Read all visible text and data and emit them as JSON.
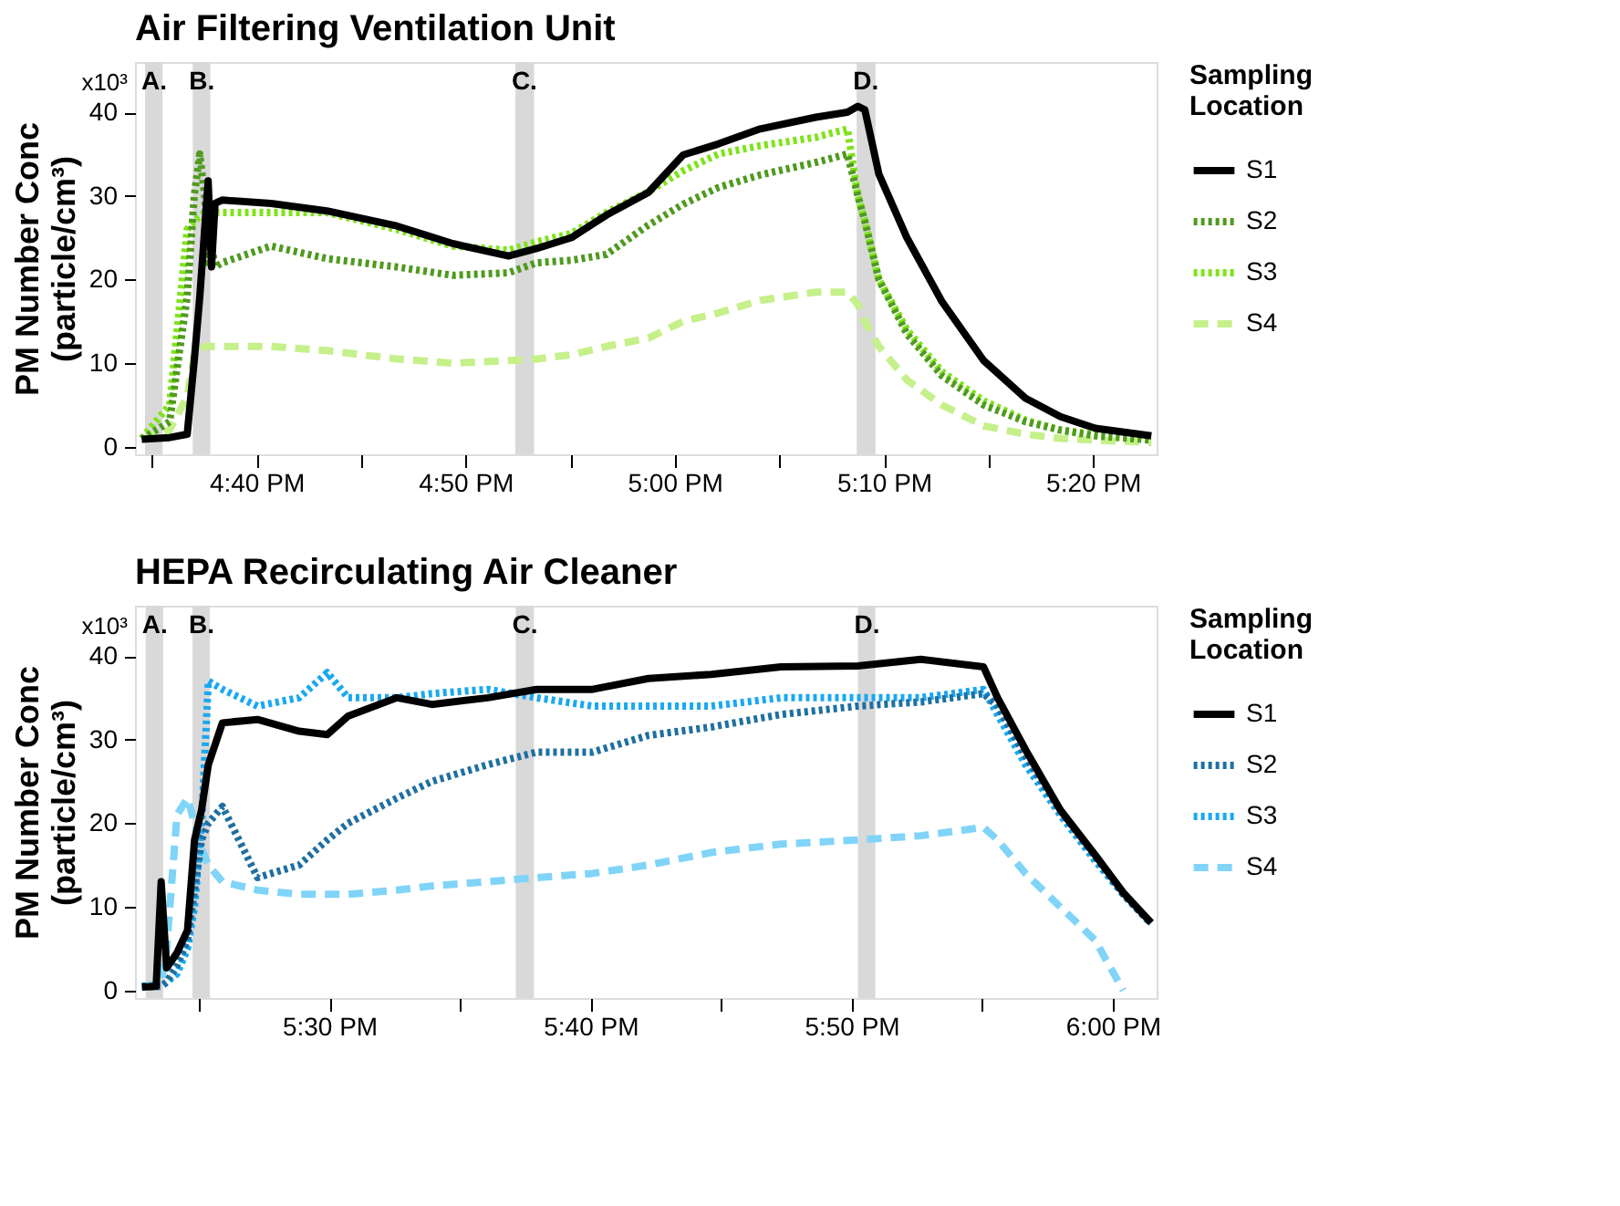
{
  "chart_data": [
    {
      "type": "line",
      "title": "Air Filtering Ventilation Unit",
      "ylabel": "PM Number Conc\n(particle/cm³)",
      "legend_title": "Sampling Location",
      "legend": "right",
      "grid": false,
      "x": [
        16.5754,
        16.5976,
        16.6116,
        16.6172,
        16.6216,
        16.6255,
        16.6283,
        16.631,
        16.6338,
        16.6394,
        16.6784,
        16.7229,
        16.7786,
        16.8231,
        16.8676,
        16.8899,
        16.9177,
        16.9456,
        16.979,
        17.0068,
        17.0347,
        17.0681,
        17.1125,
        17.1376,
        17.146,
        17.1515,
        17.1627,
        17.185,
        17.2128,
        17.2462,
        17.2795,
        17.3074,
        17.3352,
        17.3798
      ],
      "series": [
        {
          "name": "S1",
          "color": "#000000",
          "line_style": "solid",
          "values": [
            0.9,
            1.1,
            1.5,
            10.3,
            17.9,
            26,
            31.8,
            21.5,
            29.1,
            29.5,
            29.1,
            28.2,
            26.4,
            24.3,
            22.8,
            23.7,
            25,
            27.7,
            30.4,
            34.9,
            36.2,
            38,
            39.4,
            40,
            40.7,
            40.3,
            32.6,
            25,
            17.4,
            10.3,
            5.8,
            3.6,
            2.2,
            1.3
          ]
        },
        {
          "name": "S2",
          "color": "#4f9a1f",
          "line_style": "dotted",
          "values": [
            0.9,
            3,
            18,
            30,
            35,
            30,
            22,
            24,
            21.5,
            22,
            24,
            22.5,
            21.5,
            20.5,
            20.8,
            22,
            22.3,
            23,
            26.5,
            29,
            31,
            32.5,
            34,
            35,
            30,
            27,
            20,
            13.5,
            8.5,
            5,
            3,
            2,
            1.3,
            0.8
          ]
        },
        {
          "name": "S3",
          "color": "#7fe31b",
          "line_style": "dotted",
          "values": [
            1,
            5,
            26,
            27,
            27.5,
            28,
            28,
            28,
            28,
            28,
            28,
            28,
            26,
            24,
            23.5,
            24.5,
            25.5,
            28,
            30.5,
            33,
            35,
            36,
            37,
            38,
            30,
            27,
            20,
            14,
            9,
            5.5,
            3.2,
            2,
            1.5,
            0.9
          ]
        },
        {
          "name": "S4",
          "color": "#c5f08a",
          "line_style": "dashed",
          "values": [
            0.9,
            2,
            6,
            11,
            11.5,
            12,
            12,
            12,
            12,
            12,
            12,
            11.5,
            10.5,
            10,
            10.3,
            10.5,
            11,
            12,
            13,
            15,
            16,
            17.5,
            18.5,
            18.5,
            17,
            15,
            12,
            8,
            5,
            2.5,
            1.5,
            1,
            0.8,
            0.5
          ]
        }
      ],
      "xlim": [
        16.57,
        17.384
      ],
      "xticks": [
        {
          "value": 16.5833,
          "label": null
        },
        {
          "value": 16.6667,
          "label": "4:40 PM"
        },
        {
          "value": 16.75,
          "label": null
        },
        {
          "value": 16.8333,
          "label": "4:50 PM"
        },
        {
          "value": 16.9167,
          "label": null
        },
        {
          "value": 17.0,
          "label": "5:00 PM"
        },
        {
          "value": 17.0833,
          "label": null
        },
        {
          "value": 17.1667,
          "label": "5:10 PM"
        },
        {
          "value": 17.25,
          "label": null
        },
        {
          "value": 17.3333,
          "label": "5:20 PM"
        }
      ],
      "ylim": [
        -0.9,
        46
      ],
      "yticks": [
        0,
        10,
        20,
        30,
        40
      ],
      "annotations": [
        "x10³"
      ],
      "bands": [
        {
          "axis": "x",
          "from": 16.578,
          "to": 16.592,
          "label": "A.",
          "color": "#d9d9d9"
        },
        {
          "axis": "x",
          "from": 16.616,
          "to": 16.63,
          "label": "B.",
          "color": "#d9d9d9"
        },
        {
          "axis": "x",
          "from": 16.873,
          "to": 16.888,
          "label": "C.",
          "color": "#d9d9d9"
        },
        {
          "axis": "x",
          "from": 17.145,
          "to": 17.16,
          "label": "D.",
          "color": "#d9d9d9"
        }
      ]
    },
    {
      "type": "line",
      "title": "HEPA Recirculating Air Cleaner",
      "ylabel": "PM Number Conc\n(particle/cm³)",
      "legend_title": "Sampling Location",
      "legend": "right",
      "grid": false,
      "x": [
        17.3805,
        17.3895,
        17.3927,
        17.3962,
        17.4028,
        17.4095,
        17.414,
        17.4185,
        17.4228,
        17.4318,
        17.4542,
        17.4808,
        17.4987,
        17.512,
        17.5432,
        17.5655,
        17.6012,
        17.6323,
        17.668,
        17.7037,
        17.7438,
        17.7883,
        17.8373,
        17.8775,
        17.9175,
        17.9265,
        17.9443,
        17.9665,
        17.9888,
        18.0067,
        18.0245
      ],
      "series": [
        {
          "name": "S1",
          "color": "#000000",
          "line_style": "solid",
          "values": [
            0.4,
            0.5,
            13,
            2.7,
            4.5,
            7.2,
            18,
            21.6,
            27,
            32,
            32.4,
            31,
            30.6,
            32.8,
            35,
            34.2,
            35,
            36,
            36,
            37.3,
            37.8,
            38.7,
            38.8,
            39.6,
            38.7,
            35,
            28.8,
            21.6,
            16.2,
            11.7,
            8.1
          ]
        },
        {
          "name": "S2",
          "color": "#1f6fa0",
          "line_style": "dotted",
          "values": [
            0.5,
            0.5,
            0.5,
            1,
            3,
            6,
            12,
            18,
            20,
            22,
            13.5,
            15,
            18,
            20,
            23,
            25,
            27,
            28.5,
            28.5,
            30.5,
            31.5,
            33,
            34,
            34.5,
            35.5,
            34,
            28,
            21.5,
            16,
            11.5,
            8
          ]
        },
        {
          "name": "S3",
          "color": "#1aa8f0",
          "line_style": "dotted",
          "values": [
            0.5,
            0.5,
            0.5,
            1,
            2,
            5,
            10,
            20,
            37,
            36,
            34,
            35,
            38,
            35,
            35,
            35.5,
            36,
            35,
            34,
            34,
            34,
            35,
            35,
            35,
            36,
            33,
            27,
            21,
            15.5,
            11.5,
            8
          ]
        },
        {
          "name": "S4",
          "color": "#80d4f8",
          "line_style": "dashed",
          "values": [
            0.5,
            0.8,
            1,
            5,
            21,
            23,
            20,
            17,
            15,
            13,
            12,
            11.5,
            11.5,
            11.5,
            12,
            12.5,
            13,
            13.5,
            14,
            15,
            16.5,
            17.5,
            18,
            18.5,
            19.5,
            18,
            14,
            10,
            6,
            0,
            null
          ]
        }
      ],
      "xlim": [
        17.376,
        18.028
      ],
      "xticks": [
        {
          "value": 17.4167,
          "label": null
        },
        {
          "value": 17.5,
          "label": "5:30 PM"
        },
        {
          "value": 17.5833,
          "label": null
        },
        {
          "value": 17.6667,
          "label": "5:40 PM"
        },
        {
          "value": 17.75,
          "label": null
        },
        {
          "value": 17.8333,
          "label": "5:50 PM"
        },
        {
          "value": 17.9167,
          "label": null
        },
        {
          "value": 18.0,
          "label": "6:00 PM"
        }
      ],
      "ylim": [
        -0.9,
        46
      ],
      "yticks": [
        0,
        10,
        20,
        30,
        40
      ],
      "annotations": [
        "x10³"
      ],
      "bands": [
        {
          "axis": "x",
          "from": 17.3828,
          "to": 17.394,
          "label": "A.",
          "color": "#d9d9d9"
        },
        {
          "axis": "x",
          "from": 17.4127,
          "to": 17.4238,
          "label": "B.",
          "color": "#d9d9d9"
        },
        {
          "axis": "x",
          "from": 17.619,
          "to": 17.6306,
          "label": "C.",
          "color": "#d9d9d9"
        },
        {
          "axis": "x",
          "from": 17.8374,
          "to": 17.8485,
          "label": "D.",
          "color": "#d9d9d9"
        }
      ]
    }
  ]
}
